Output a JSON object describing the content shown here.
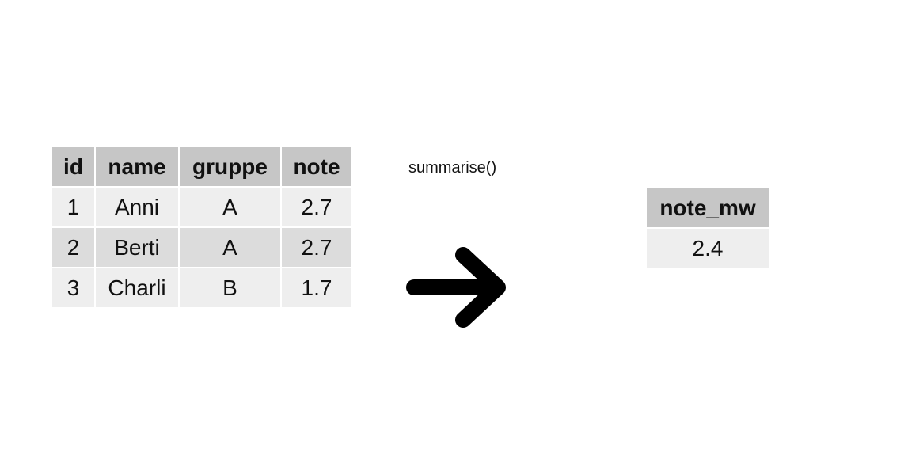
{
  "source_table": {
    "columns": [
      "id",
      "name",
      "gruppe",
      "note"
    ],
    "rows": [
      [
        "1",
        "Anni",
        "A",
        "2.7"
      ],
      [
        "2",
        "Berti",
        "A",
        "2.7"
      ],
      [
        "3",
        "Charli",
        "B",
        "1.7"
      ]
    ]
  },
  "operation": {
    "label": "summarise()",
    "arrow_icon": "right-arrow-icon"
  },
  "result_table": {
    "columns": [
      "note_mw"
    ],
    "rows": [
      [
        "2.4"
      ]
    ]
  }
}
